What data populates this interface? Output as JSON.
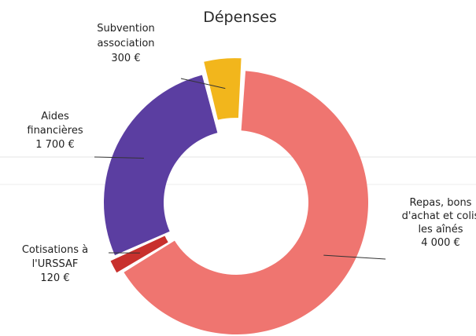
{
  "chart_data": {
    "type": "pie",
    "donut": true,
    "title": "Dépenses",
    "legend": "none",
    "slices": [
      {
        "name": "Repas, bons d'achat et colis les aînés",
        "value": 4000,
        "label_lines": [
          "Repas, bons",
          "d'achat et colis",
          "les aînés",
          "4 000 €"
        ],
        "color": "#ef7570"
      },
      {
        "name": "Cotisations à l'URSSAF",
        "value": 120,
        "label_lines": [
          "Cotisations à",
          "l'URSSAF",
          "120 €"
        ],
        "color": "#c8302d"
      },
      {
        "name": "Aides financières",
        "value": 1700,
        "label_lines": [
          "Aides",
          "financières",
          "1 700 €"
        ],
        "color": "#5b3ea1"
      },
      {
        "name": "Subvention association",
        "value": 300,
        "label_lines": [
          "Subvention",
          "association",
          "300 €"
        ],
        "color": "#f2b61c"
      }
    ]
  }
}
